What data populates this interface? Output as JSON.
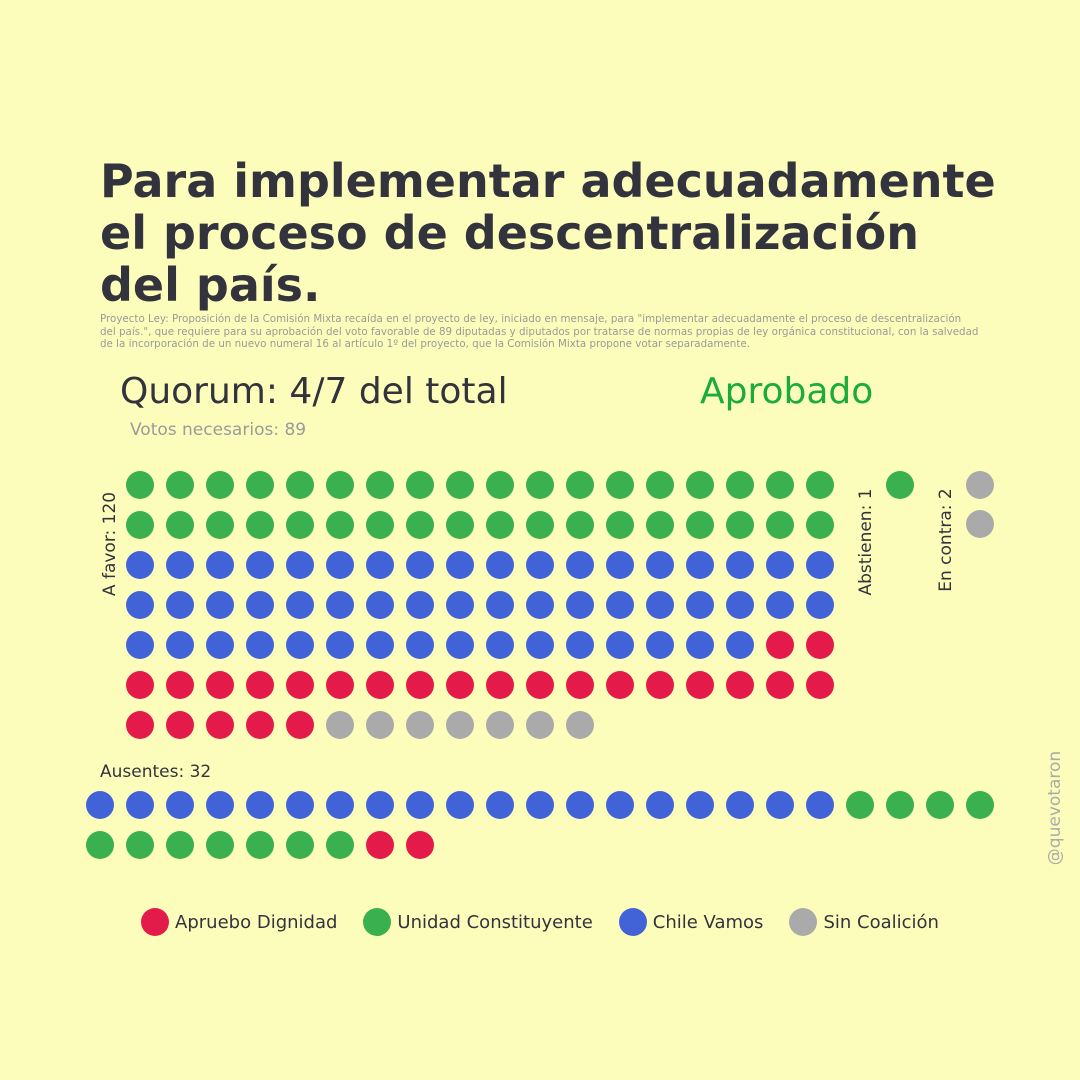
{
  "header": {
    "title": "Para implementar adecuadamente el proceso de descentralización del país.",
    "subtitle": "Proyecto Ley: Proposición de la Comisión Mixta recaída en el proyecto de ley, iniciado en mensaje, para \"implementar adecuadamente el proceso de descentralización del país.\", que requiere para su aprobación del voto favorable de 89 diputadas y diputados por tratarse de normas propias de ley orgánica constitucional, con la salvedad de la incorporación de un nuevo numeral 16 al artículo 1º del proyecto, que la Comisión Mixta propone votar separadamente.",
    "quorum": "Quorum: 4/7 del total",
    "status": "Aprobado",
    "status_color": "#1aab3c",
    "votes_needed": "Votos necesarios: 89"
  },
  "watermark": "@quevotaron",
  "colors": {
    "Apruebo Dignidad": "#e41b4a",
    "Unidad Constituyente": "#3bb04f",
    "Chile Vamos": "#4263d8",
    "Sin Coalición": "#aaaaaa"
  },
  "legend": [
    {
      "label": "Apruebo Dignidad",
      "color": "#e41b4a"
    },
    {
      "label": "Unidad Constituyente",
      "color": "#3bb04f"
    },
    {
      "label": "Chile Vamos",
      "color": "#4263d8"
    },
    {
      "label": "Sin Coalición",
      "color": "#aaaaaa"
    }
  ],
  "chart_data": {
    "type": "dot-matrix",
    "groups": [
      {
        "label": "A favor: 120",
        "total": 120,
        "counts": [
          {
            "coalition": "Unidad Constituyente",
            "count": 36
          },
          {
            "coalition": "Chile Vamos",
            "count": 52
          },
          {
            "coalition": "Apruebo Dignidad",
            "count": 25
          },
          {
            "coalition": "Sin Coalición",
            "count": 7
          }
        ]
      },
      {
        "label": "Abstienen: 1",
        "total": 1,
        "counts": [
          {
            "coalition": "Unidad Constituyente",
            "count": 1
          }
        ]
      },
      {
        "label": "En contra: 2",
        "total": 2,
        "counts": [
          {
            "coalition": "Sin Coalición",
            "count": 2
          }
        ]
      },
      {
        "label": "Ausentes: 32",
        "total": 32,
        "counts": [
          {
            "coalition": "Chile Vamos",
            "count": 19
          },
          {
            "coalition": "Unidad Constituyente",
            "count": 11
          },
          {
            "coalition": "Apruebo Dignidad",
            "count": 2
          }
        ]
      }
    ]
  }
}
